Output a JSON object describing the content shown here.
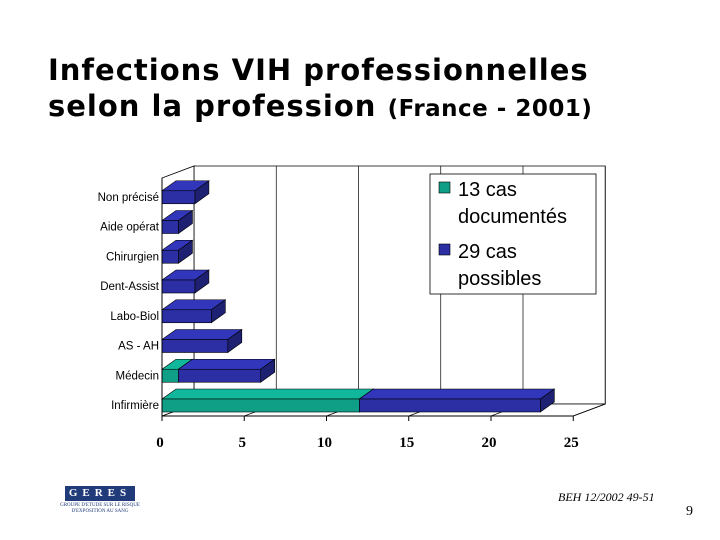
{
  "title": {
    "line1": "Infections VIH professionnelles",
    "line2_main": "selon la profession",
    "line2_sub": "(France - 2001)"
  },
  "source": "BEH 12/2002 49-51",
  "page_number": "9",
  "logo": {
    "text": "GERES",
    "subtitle": "GROUPE D'ETUDE SUR LE RISQUE D'EXPOSITION AU SANG"
  },
  "colors": {
    "documented": "#0f9f86",
    "possible": "#2b2fa3",
    "background": "#ffffff"
  },
  "chart_data": {
    "type": "bar",
    "orientation": "horizontal",
    "stacked": true,
    "three_d": true,
    "categories": [
      "Non précisé",
      "Aide opérat",
      "Chirurgien",
      "Dent-Assist",
      "Labo-Biol",
      "AS - AH",
      "Médecin",
      "Infirmière"
    ],
    "series": [
      {
        "name": "13 cas documentés",
        "values": [
          0,
          0,
          0,
          0,
          0,
          0,
          1,
          12
        ]
      },
      {
        "name": "29 cas possibles",
        "values": [
          2,
          1,
          1,
          2,
          3,
          4,
          5,
          11
        ]
      }
    ],
    "x_ticks": [
      "0",
      "5",
      "10",
      "15",
      "20",
      "25"
    ],
    "xlim": [
      0,
      25
    ],
    "grid": true,
    "legend_position": "top-right"
  }
}
